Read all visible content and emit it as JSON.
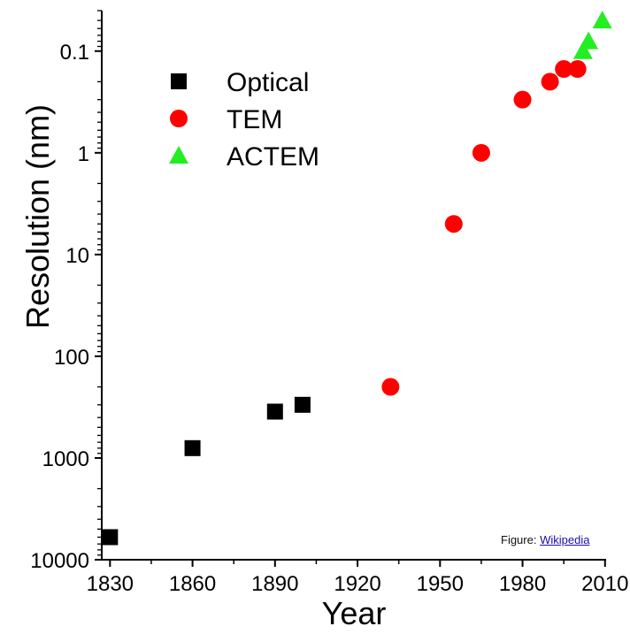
{
  "credit": {
    "prefix": "Figure: ",
    "link_text": "Wikipedia"
  },
  "chart_data": {
    "type": "scatter",
    "title": "",
    "xlabel": "Year",
    "ylabel": "Resolution (nm)",
    "xlim": [
      1827,
      2012
    ],
    "x_ticks": [
      1830,
      1860,
      1890,
      1920,
      1950,
      1980,
      2010
    ],
    "y_scale": "log",
    "y_inverted": true,
    "ylim": [
      10000,
      0.04
    ],
    "y_ticks": [
      10000,
      1000,
      100,
      10,
      1,
      0.1
    ],
    "y_tick_labels": [
      "10000",
      "1000",
      "100",
      "10",
      "1",
      "0.1"
    ],
    "grid": false,
    "legend_position": "top-left",
    "series": [
      {
        "name": "Optical",
        "marker": "square",
        "color": "#000000",
        "points": [
          {
            "x": 1830,
            "y": 6000
          },
          {
            "x": 1860,
            "y": 800
          },
          {
            "x": 1890,
            "y": 350
          },
          {
            "x": 1900,
            "y": 300
          }
        ]
      },
      {
        "name": "TEM",
        "marker": "circle",
        "color": "#ff0000",
        "points": [
          {
            "x": 1932,
            "y": 200
          },
          {
            "x": 1955,
            "y": 5
          },
          {
            "x": 1965,
            "y": 1
          },
          {
            "x": 1980,
            "y": 0.3
          },
          {
            "x": 1990,
            "y": 0.2
          },
          {
            "x": 1995,
            "y": 0.15
          },
          {
            "x": 2000,
            "y": 0.15
          }
        ]
      },
      {
        "name": "ACTEM",
        "marker": "triangle",
        "color": "#22ee22",
        "points": [
          {
            "x": 2002,
            "y": 0.1
          },
          {
            "x": 2004,
            "y": 0.08
          },
          {
            "x": 2009,
            "y": 0.05
          }
        ]
      }
    ]
  }
}
